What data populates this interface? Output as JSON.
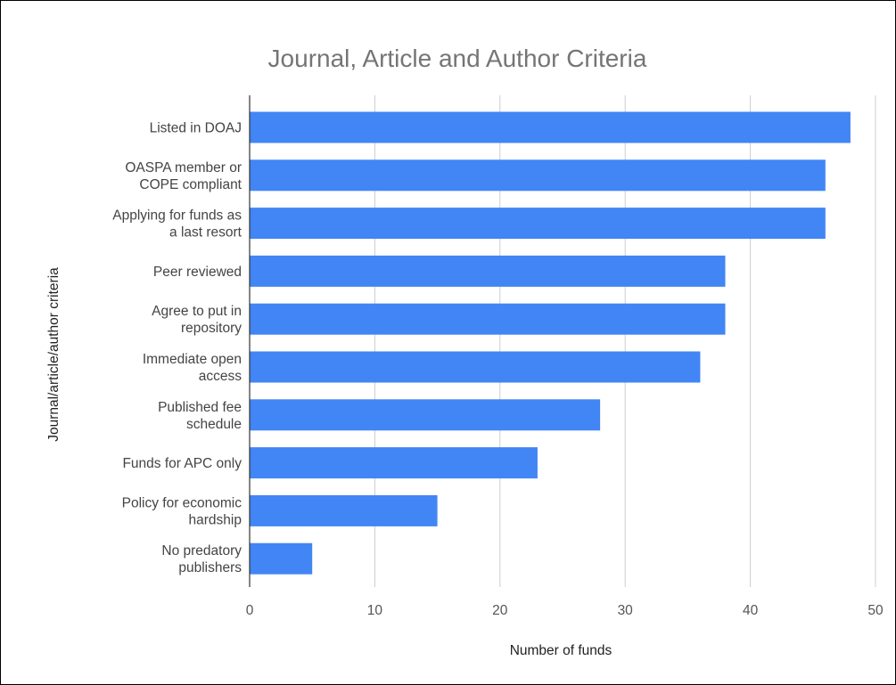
{
  "chart_data": {
    "type": "bar",
    "orientation": "horizontal",
    "title": "Journal, Article and Author Criteria",
    "xlabel": "Number of funds",
    "ylabel": "Journal/article/author criteria",
    "xlim": [
      0,
      50
    ],
    "xticks": [
      0,
      10,
      20,
      30,
      40,
      50
    ],
    "grid": true,
    "legend": "none",
    "bar_color": "#4285f4",
    "categories": [
      [
        "Listed in DOAJ"
      ],
      [
        "OASPA member or",
        "COPE compliant"
      ],
      [
        "Applying for funds as",
        "a last resort"
      ],
      [
        "Peer reviewed"
      ],
      [
        "Agree to put in",
        "repository"
      ],
      [
        "Immediate open",
        "access"
      ],
      [
        "Published fee",
        "schedule"
      ],
      [
        "Funds for APC only"
      ],
      [
        "Policy for economic",
        "hardship"
      ],
      [
        "No predatory",
        "publishers"
      ]
    ],
    "values": [
      48,
      46,
      46,
      38,
      38,
      36,
      28,
      23,
      15,
      5
    ]
  }
}
